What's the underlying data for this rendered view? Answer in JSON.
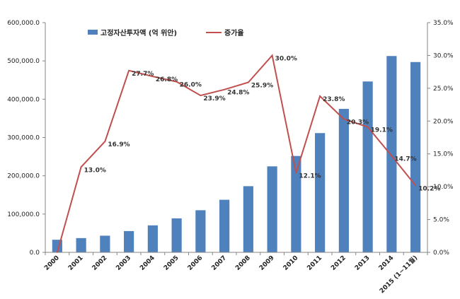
{
  "chart_data": {
    "type": "bar",
    "categories": [
      "2000",
      "2001",
      "2002",
      "2003",
      "2004",
      "2005",
      "2006",
      "2007",
      "2008",
      "2009",
      "2010",
      "2011",
      "2012",
      "2013",
      "2014",
      "2015 (1~11월)"
    ],
    "series": [
      {
        "name": "고정자산투자액 (억 위안)",
        "type": "bar",
        "axis": "left",
        "color": "#4f81bd",
        "values": [
          32918,
          37214,
          43500,
          55567,
          70477,
          88774,
          109998,
          137324,
          172828,
          224599,
          251684,
          311485,
          374695,
          446294,
          512761,
          497000
        ]
      },
      {
        "name": "증가율",
        "type": "line",
        "axis": "right",
        "color": "#c0504d",
        "values": [
          0.0,
          13.0,
          16.9,
          27.7,
          26.8,
          26.0,
          23.9,
          24.8,
          25.9,
          30.0,
          12.1,
          23.8,
          20.3,
          19.1,
          14.7,
          10.2
        ],
        "labels": [
          "",
          "13.0%",
          "16.9%",
          "27.7%",
          "26.8%",
          "26.0%",
          "23.9%",
          "24.8%",
          "25.9%",
          "30.0%",
          "12.1%",
          "23.8%",
          "20.3%",
          "19.1%",
          "14.7%",
          "10.2%"
        ]
      }
    ],
    "y_left": {
      "ylim": [
        0,
        600000
      ],
      "ticks": [
        "0.0",
        "100,000.0",
        "200,000.0",
        "300,000.0",
        "400,000.0",
        "500,000.0",
        "600,000.0"
      ]
    },
    "y_right": {
      "ylim": [
        0,
        35
      ],
      "ticks": [
        "0.0%",
        "5.0%",
        "10.0%",
        "15.0%",
        "20.0%",
        "25.0%",
        "30.0%",
        "35.0%"
      ]
    },
    "grid": false,
    "legend": "top-left"
  }
}
